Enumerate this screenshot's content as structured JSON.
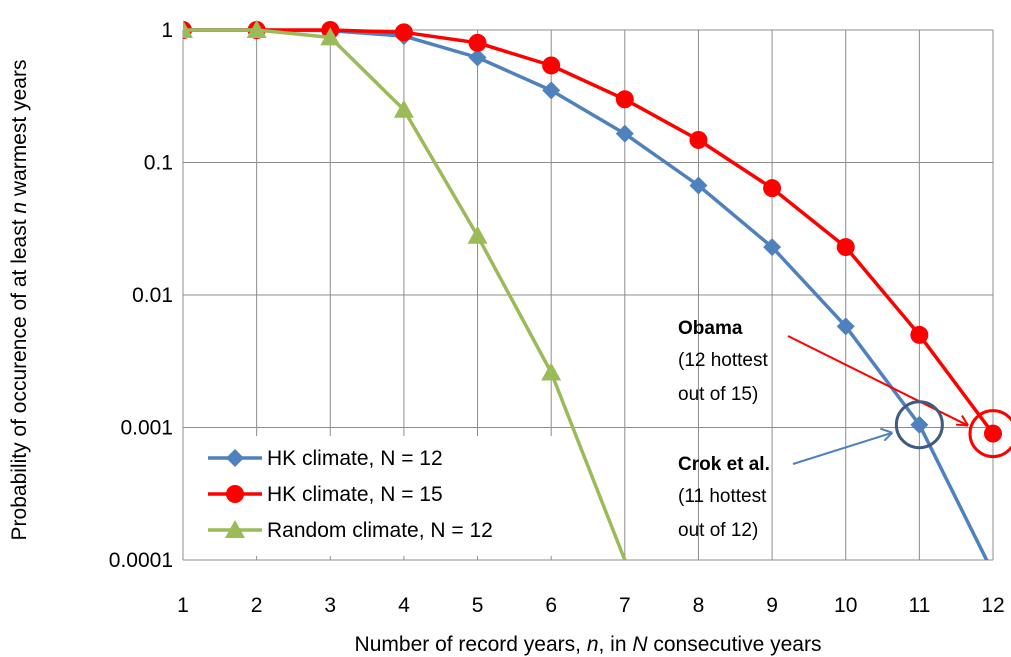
{
  "chart_data": {
    "type": "line",
    "xlabel_parts": [
      "Number of record years, ",
      "n",
      ", in ",
      "N",
      " consecutive years"
    ],
    "ylabel_parts": [
      "Probability of occurence of at least ",
      "n",
      " warmest years"
    ],
    "x": [
      1,
      2,
      3,
      4,
      5,
      6,
      7,
      8,
      9,
      10,
      11,
      12
    ],
    "x_tick_labels": [
      "1",
      "2",
      "3",
      "4",
      "5",
      "6",
      "7",
      "8",
      "9",
      "10",
      "11",
      "12"
    ],
    "y_scale": "log",
    "ylim": [
      0.0001,
      1
    ],
    "y_ticks": [
      1,
      0.1,
      0.01,
      0.001,
      0.0001
    ],
    "y_tick_labels": [
      "1",
      "0.1",
      "0.01",
      "0.001",
      "0.0001"
    ],
    "grid": true,
    "legend_position": "bottom-left",
    "series": [
      {
        "name": "HK climate, N = 12",
        "color": "#4F81BD",
        "marker": "diamond",
        "x": [
          1,
          2,
          3,
          4,
          5,
          6,
          7,
          8,
          9,
          10,
          11,
          12
        ],
        "values": [
          1,
          1,
          0.99,
          0.9,
          0.62,
          0.35,
          0.165,
          0.067,
          0.023,
          0.0058,
          0.00105,
          8e-05
        ]
      },
      {
        "name": "HK climate, N = 15",
        "color": "#FF0000",
        "marker": "circle",
        "x": [
          1,
          2,
          3,
          4,
          5,
          6,
          7,
          8,
          9,
          10,
          11,
          12
        ],
        "values": [
          1,
          1,
          1,
          0.96,
          0.8,
          0.54,
          0.3,
          0.148,
          0.064,
          0.023,
          0.005,
          0.0009
        ]
      },
      {
        "name": "Random climate, N = 12",
        "color": "#9BBB59",
        "marker": "triangle",
        "x": [
          1,
          2,
          3,
          4,
          5,
          6,
          7
        ],
        "values": [
          1,
          1,
          0.88,
          0.25,
          0.028,
          0.0026,
          0.0001
        ]
      }
    ],
    "annotations": [
      {
        "title": "Obama",
        "lines": [
          "(12 hottest",
          "out of 15)"
        ],
        "color": "#FF0000",
        "target_x": 12,
        "target_y": 0.0009
      },
      {
        "title": "Crok et al.",
        "lines": [
          "(11 hottest",
          "out of 12)"
        ],
        "color": "#4F81BD",
        "circle_color": "#3F5C80",
        "target_x": 11,
        "target_y": 0.00105
      }
    ]
  }
}
